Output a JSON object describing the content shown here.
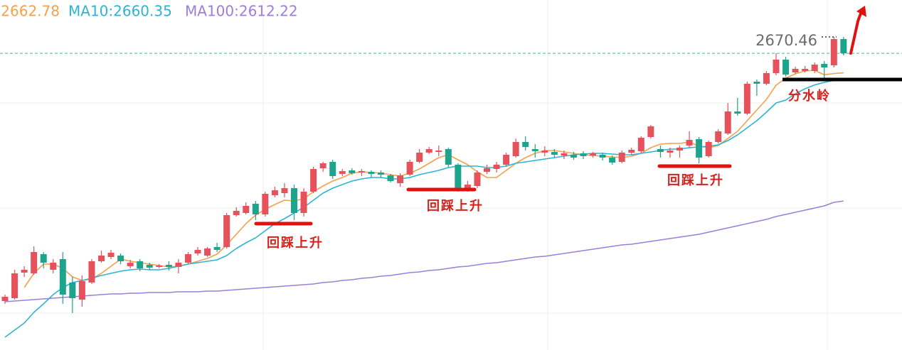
{
  "chart_data": {
    "type": "candlestick",
    "up_color": "#e5525b",
    "down_color": "#1ea38c",
    "ylim": [
      2553.46,
      2691.5
    ],
    "open": [
      2572.78,
      2573.9,
      2583.98,
      2583.7,
      2591.26,
      2585.1,
      2589.3,
      2580.06,
      2573.34,
      2580.06,
      2588.46,
      2590.14,
      2590.7,
      2586.5,
      2588.46,
      2587.06,
      2586.22,
      2587.06,
      2586.22,
      2587.9,
      2591.54,
      2590.7,
      2594.06,
      2594.06,
      2606.66,
      2607.5,
      2611.14,
      2606.94,
      2614.5,
      2615.34,
      2617.3,
      2607.5,
      2615.9,
      2625.14,
      2627.66,
      2622.9,
      2624.3,
      2623.46,
      2623.74,
      2623.46,
      2622.34,
      2619.26,
      2622.62,
      2627.66,
      2631.3,
      2631.58,
      2632.7,
      2626.54,
      2617.02,
      2618.14,
      2623.74,
      2624.86,
      2626.54,
      2629.9,
      2635.5,
      2632.7,
      2631.3,
      2631.58,
      2630.18,
      2630.46,
      2631.02,
      2630.18,
      2630.46,
      2629.34,
      2627.66,
      2631.3,
      2631.86,
      2637.46,
      2632.7,
      2631.3,
      2632.14,
      2634.1,
      2636.62,
      2629.9,
      2635.5,
      2638.86,
      2647.54,
      2646.7,
      2659.3,
      2658.46,
      2662.66,
      2667.98,
      2662.94,
      2663.5,
      2663.5,
      2666.3,
      2665.74,
      2676.1
    ],
    "high": [
      2575.3,
      2585.1,
      2586.5,
      2594.34,
      2592.1,
      2589.3,
      2592.1,
      2582.3,
      2582.86,
      2589.3,
      2592.66,
      2592.94,
      2591.54,
      2589.02,
      2589.3,
      2587.9,
      2587.34,
      2588.46,
      2589.3,
      2592.1,
      2594.06,
      2594.06,
      2595.74,
      2607.5,
      2609.74,
      2611.7,
      2612.26,
      2615.9,
      2617.86,
      2619.26,
      2618.7,
      2617.3,
      2625.7,
      2627.66,
      2628.5,
      2624.86,
      2625.14,
      2624.86,
      2624.3,
      2624.3,
      2622.9,
      2623.18,
      2628.5,
      2632.7,
      2633.54,
      2634.1,
      2633.26,
      2627.1,
      2620.1,
      2624.3,
      2626.54,
      2627.66,
      2631.3,
      2636.9,
      2637.74,
      2634.66,
      2633.82,
      2632.7,
      2632.14,
      2631.58,
      2631.86,
      2631.58,
      2631.3,
      2630.18,
      2632.14,
      2633.26,
      2637.74,
      2642.22,
      2634.1,
      2633.26,
      2634.1,
      2639.7,
      2637.46,
      2636.06,
      2640.54,
      2650.9,
      2652.86,
      2659.3,
      2660.14,
      2663.5,
      2670.5,
      2669.1,
      2665.18,
      2665.46,
      2666.86,
      2667.42,
      2676.94,
      2676.94
    ],
    "low": [
      2571.66,
      2573.34,
      2582.3,
      2583.14,
      2585.66,
      2583.7,
      2571.66,
      2568.02,
      2570.54,
      2579.5,
      2587.9,
      2589.3,
      2587.34,
      2585.66,
      2584.54,
      2585.1,
      2585.66,
      2584.82,
      2583.7,
      2587.34,
      2590.7,
      2590.14,
      2592.1,
      2593.5,
      2606.1,
      2606.94,
      2604.7,
      2606.1,
      2613.66,
      2613.66,
      2604.7,
      2606.1,
      2615.34,
      2623.74,
      2620.94,
      2622.06,
      2622.62,
      2622.06,
      2621.5,
      2621.5,
      2619.54,
      2617.86,
      2622.06,
      2627.1,
      2630.74,
      2629.9,
      2625.7,
      2615.9,
      2615.9,
      2617.3,
      2622.9,
      2623.46,
      2625.7,
      2629.34,
      2632.14,
      2629.34,
      2629.9,
      2629.34,
      2628.78,
      2628.5,
      2628.78,
      2629.34,
      2628.22,
      2626.54,
      2627.1,
      2630.46,
      2631.3,
      2636.9,
      2629.34,
      2629.34,
      2629.34,
      2633.26,
      2627.1,
      2629.34,
      2634.94,
      2638.3,
      2645.86,
      2646.14,
      2653.7,
      2657.9,
      2661.82,
      2661.26,
      2662.38,
      2662.94,
      2662.66,
      2660.7,
      2664.9,
      2669.66
    ],
    "close": [
      2574.46,
      2583.7,
      2585.1,
      2592.1,
      2587.9,
      2587.9,
      2575.3,
      2573.9,
      2580.62,
      2588.46,
      2590.7,
      2591.82,
      2588.46,
      2587.9,
      2585.66,
      2585.94,
      2586.78,
      2586.22,
      2587.9,
      2591.26,
      2592.94,
      2593.5,
      2592.94,
      2606.66,
      2608.34,
      2610.3,
      2606.94,
      2615.06,
      2616.46,
      2617.3,
      2607.5,
      2615.9,
      2624.86,
      2627.1,
      2622.06,
      2624.02,
      2623.18,
      2624.02,
      2622.9,
      2622.62,
      2620.1,
      2622.34,
      2627.66,
      2631.3,
      2632.7,
      2632.14,
      2626.54,
      2616.46,
      2618.7,
      2623.46,
      2625.14,
      2626.54,
      2630.46,
      2635.5,
      2633.54,
      2631.86,
      2632.14,
      2630.46,
      2631.02,
      2629.34,
      2629.9,
      2631.02,
      2629.34,
      2627.38,
      2631.3,
      2632.42,
      2637.18,
      2641.66,
      2631.58,
      2632.14,
      2633.26,
      2636.34,
      2629.34,
      2635.5,
      2639.7,
      2647.54,
      2646.7,
      2658.46,
      2658.46,
      2662.66,
      2667.98,
      2662.1,
      2664.34,
      2664.34,
      2666.02,
      2664.9,
      2676.1,
      2670.46
    ],
    "series": [
      {
        "name": "2662.78",
        "color": "#f4a04c",
        "values": [
          null,
          null,
          2578.1,
          2583.7,
          2587.34,
          2587.34,
          2585.66,
          2582.3,
          2580.9,
          2581.46,
          2583.7,
          2586.5,
          2589.3,
          2588.46,
          2587.9,
          2587.34,
          2586.78,
          2586.22,
          2586.5,
          2587.34,
          2588.46,
          2589.58,
          2591.26,
          2594.9,
          2599.1,
          2603.3,
          2606.66,
          2608.9,
          2610.86,
          2612.54,
          2612.26,
          2613.1,
          2615.9,
          2618.14,
          2620.1,
          2621.5,
          2623.18,
          2623.74,
          2623.46,
          2623.18,
          2622.62,
          2622.06,
          2623.18,
          2624.86,
          2627.1,
          2629.34,
          2630.46,
          2628.5,
          2626.54,
          2623.74,
          2621.5,
          2621.5,
          2624.3,
          2627.1,
          2629.34,
          2631.02,
          2632.14,
          2632.14,
          2631.58,
          2631.02,
          2630.46,
          2630.18,
          2629.9,
          2629.62,
          2629.34,
          2629.9,
          2631.02,
          2633.26,
          2634.66,
          2634.94,
          2634.94,
          2635.5,
          2633.82,
          2633.26,
          2634.1,
          2636.9,
          2639.7,
          2643.9,
          2648.1,
          2652.3,
          2657.9,
          2660.7,
          2662.38,
          2663.5,
          2663.78,
          2662.0,
          2662.5,
          2662.78
        ]
      },
      {
        "name": "MA10:2660.35",
        "color": "#2fb3d3",
        "values": [
          2558.5,
          2561.3,
          2564.1,
          2568.3,
          2571.66,
          2575.3,
          2578.1,
          2580.06,
          2580.9,
          2581.74,
          2582.86,
          2583.7,
          2584.54,
          2585.1,
          2585.38,
          2585.1,
          2585.1,
          2585.66,
          2586.5,
          2587.34,
          2587.9,
          2588.46,
          2589.02,
          2590.7,
          2593.5,
          2595.74,
          2597.7,
          2600.5,
          2603.3,
          2605.26,
          2607.5,
          2609.74,
          2612.54,
          2615.34,
          2617.3,
          2618.7,
          2620.1,
          2620.94,
          2621.5,
          2621.5,
          2620.94,
          2620.94,
          2621.5,
          2622.62,
          2623.46,
          2624.3,
          2625.42,
          2625.98,
          2625.98,
          2625.98,
          2625.42,
          2625.42,
          2625.98,
          2627.1,
          2627.66,
          2628.22,
          2628.78,
          2629.34,
          2629.9,
          2630.46,
          2630.74,
          2631.02,
          2631.02,
          2630.74,
          2630.46,
          2630.46,
          2631.02,
          2631.58,
          2632.14,
          2632.7,
          2632.7,
          2633.26,
          2633.54,
          2633.82,
          2634.38,
          2636.06,
          2638.3,
          2641.1,
          2643.9,
          2647.26,
          2650.9,
          2652.0,
          2654.5,
          2656.5,
          2658.0,
          2659.0,
          2659.8,
          2660.35
        ]
      },
      {
        "name": "MA100:2612.22",
        "color": "#9a7fdb",
        "values": [
          2572.5,
          2572.78,
          2573.06,
          2573.34,
          2573.62,
          2573.9,
          2574.18,
          2574.46,
          2574.74,
          2575.02,
          2575.3,
          2575.58,
          2575.58,
          2575.86,
          2575.86,
          2576.14,
          2576.14,
          2576.14,
          2576.42,
          2576.42,
          2576.42,
          2576.7,
          2576.7,
          2576.98,
          2577.26,
          2577.54,
          2577.82,
          2578.1,
          2578.38,
          2578.66,
          2578.94,
          2579.22,
          2579.5,
          2580.06,
          2580.34,
          2580.9,
          2581.18,
          2581.74,
          2582.02,
          2582.58,
          2582.86,
          2583.42,
          2583.98,
          2584.26,
          2584.82,
          2585.1,
          2585.66,
          2586.22,
          2586.5,
          2587.06,
          2587.62,
          2587.9,
          2588.46,
          2589.02,
          2589.58,
          2590.14,
          2590.42,
          2590.98,
          2591.54,
          2592.1,
          2592.66,
          2593.22,
          2593.78,
          2594.34,
          2594.9,
          2595.18,
          2595.74,
          2596.3,
          2596.86,
          2597.42,
          2597.98,
          2598.54,
          2599.1,
          2599.94,
          2600.78,
          2601.62,
          2602.46,
          2603.3,
          2604.14,
          2604.98,
          2606.1,
          2606.94,
          2607.78,
          2608.62,
          2609.46,
          2610.3,
          2611.7,
          2612.22
        ]
      }
    ],
    "last_price": 2670.46,
    "last_price_color": "#38b5a8",
    "annotations": [
      "回踩上升",
      "回踩上升",
      "回踩上升",
      "分水岭"
    ]
  }
}
